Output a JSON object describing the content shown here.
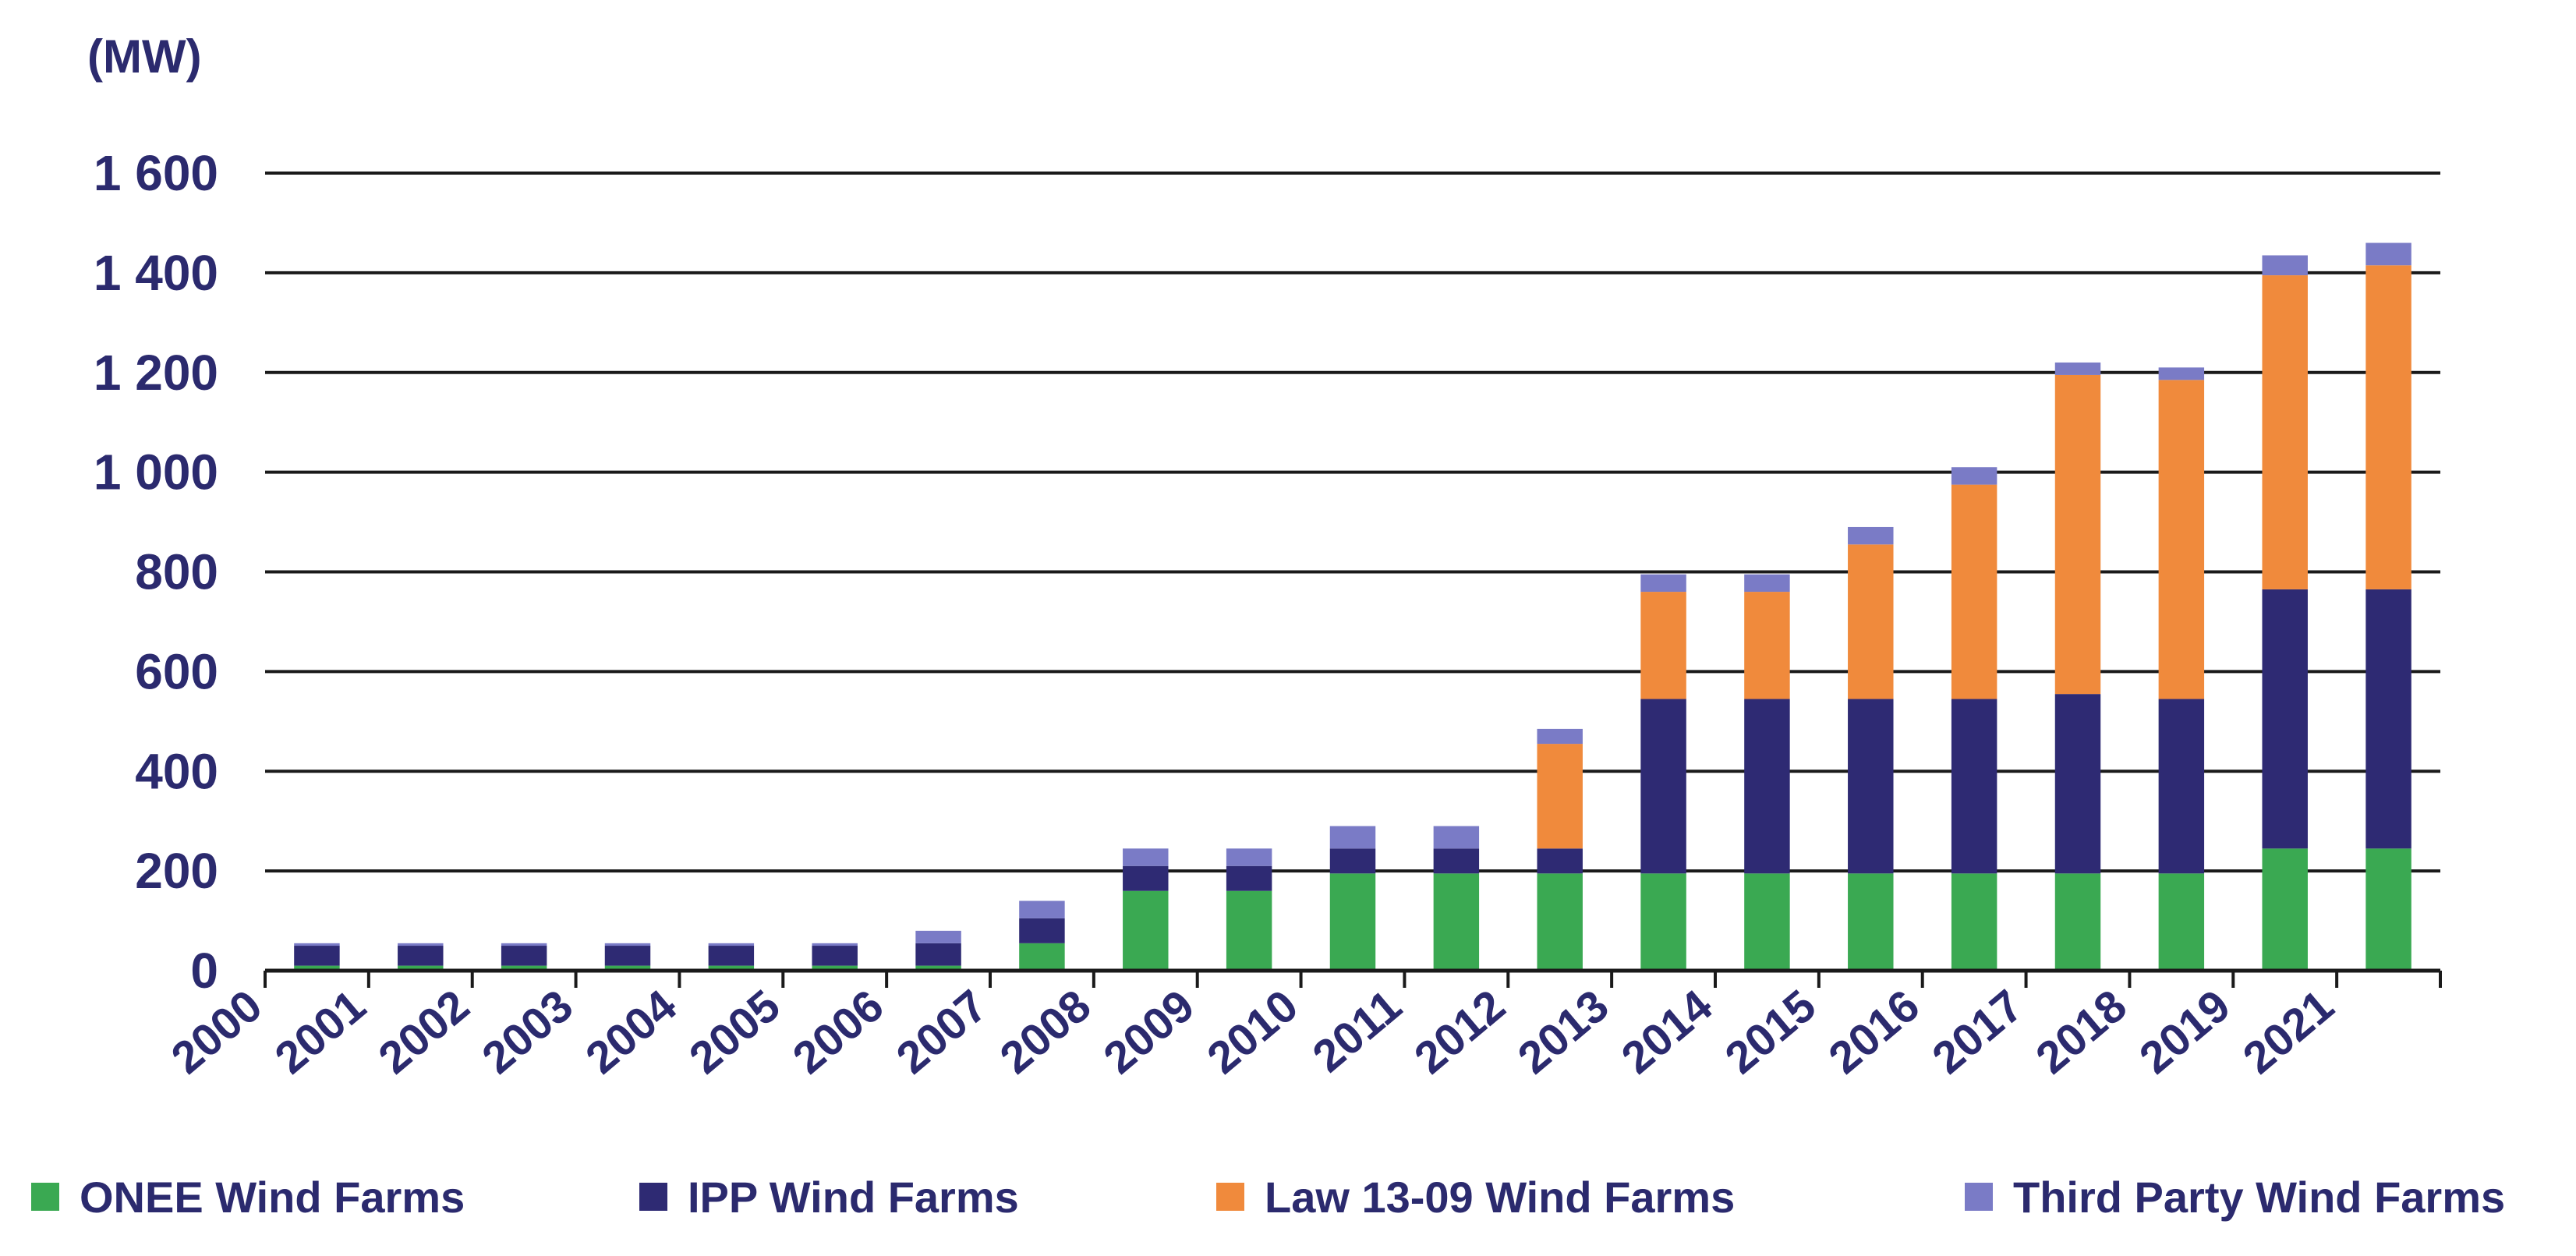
{
  "chart_data": {
    "type": "bar",
    "stacked": true,
    "title": "",
    "ylabel": "(MW)",
    "xlabel": "",
    "ylim": [
      0,
      1600
    ],
    "yticks": [
      0,
      200,
      400,
      600,
      800,
      1000,
      1200,
      1400,
      1600
    ],
    "ytick_labels": [
      "0",
      "200",
      "400",
      "600",
      "800",
      "1 000",
      "1 200",
      "1 400",
      "1 600"
    ],
    "x_boundary_labels": [
      "2000",
      "2001",
      "2002",
      "2003",
      "2004",
      "2005",
      "2006",
      "2007",
      "2008",
      "2009",
      "2010",
      "2011",
      "2012",
      "2013",
      "2014",
      "2015",
      "2016",
      "2017",
      "2018",
      "2019",
      "2021"
    ],
    "series": [
      {
        "name": "ONEE Wind Farms",
        "color": "#3aa952",
        "values": [
          10,
          10,
          10,
          10,
          10,
          10,
          10,
          55,
          160,
          160,
          195,
          195,
          195,
          195,
          195,
          195,
          195,
          195,
          195,
          245,
          245
        ]
      },
      {
        "name": "IPP Wind Farms",
        "color": "#2e2a73",
        "values": [
          40,
          40,
          40,
          40,
          40,
          40,
          45,
          50,
          50,
          50,
          50,
          50,
          50,
          350,
          350,
          350,
          350,
          360,
          350,
          520,
          520
        ]
      },
      {
        "name": "Law 13-09 Wind Farms",
        "color": "#f08a3c",
        "values": [
          0,
          0,
          0,
          0,
          0,
          0,
          0,
          0,
          0,
          0,
          0,
          0,
          210,
          215,
          215,
          310,
          430,
          640,
          640,
          630,
          650
        ]
      },
      {
        "name": "Third Party Wind Farms",
        "color": "#7a7bc6",
        "values": [
          5,
          5,
          5,
          5,
          5,
          5,
          25,
          35,
          35,
          35,
          45,
          45,
          30,
          35,
          35,
          35,
          35,
          25,
          25,
          40,
          45
        ]
      }
    ],
    "legend_position": "bottom",
    "grid": true
  }
}
